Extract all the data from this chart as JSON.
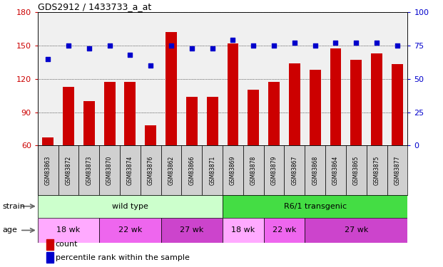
{
  "title": "GDS2912 / 1433733_a_at",
  "samples": [
    "GSM83863",
    "GSM83872",
    "GSM83873",
    "GSM83870",
    "GSM83874",
    "GSM83876",
    "GSM83862",
    "GSM83866",
    "GSM83871",
    "GSM83869",
    "GSM83878",
    "GSM83879",
    "GSM83867",
    "GSM83868",
    "GSM83864",
    "GSM83865",
    "GSM83875",
    "GSM83877"
  ],
  "counts": [
    67,
    113,
    100,
    117,
    117,
    78,
    162,
    104,
    104,
    152,
    110,
    117,
    134,
    128,
    147,
    137,
    143,
    133
  ],
  "percentiles": [
    65,
    75,
    73,
    75,
    68,
    60,
    75,
    73,
    73,
    79,
    75,
    75,
    77,
    75,
    77,
    77,
    77,
    75
  ],
  "ylim_left": [
    60,
    180
  ],
  "ylim_right": [
    0,
    100
  ],
  "yticks_left": [
    60,
    90,
    120,
    150,
    180
  ],
  "yticks_right": [
    0,
    25,
    50,
    75,
    100
  ],
  "bar_color": "#cc0000",
  "dot_color": "#0000cc",
  "bg_color": "#f0f0f0",
  "strain_groups": [
    {
      "label": "wild type",
      "start": 0,
      "end": 9,
      "color": "#ccffcc"
    },
    {
      "label": "R6/1 transgenic",
      "start": 9,
      "end": 18,
      "color": "#44dd44"
    }
  ],
  "age_groups": [
    {
      "label": "18 wk",
      "start": 0,
      "end": 3,
      "color": "#ffaaff"
    },
    {
      "label": "22 wk",
      "start": 3,
      "end": 6,
      "color": "#ee66ee"
    },
    {
      "label": "27 wk",
      "start": 6,
      "end": 9,
      "color": "#cc44cc"
    },
    {
      "label": "18 wk",
      "start": 9,
      "end": 11,
      "color": "#ffaaff"
    },
    {
      "label": "22 wk",
      "start": 11,
      "end": 13,
      "color": "#ee66ee"
    },
    {
      "label": "27 wk",
      "start": 13,
      "end": 18,
      "color": "#cc44cc"
    }
  ],
  "legend_count_color": "#cc0000",
  "legend_pct_color": "#0000cc",
  "left_tick_color": "#cc0000",
  "right_tick_color": "#0000cc",
  "sample_bg": "#d0d0d0",
  "fig_width": 6.21,
  "fig_height": 3.75,
  "dpi": 100
}
